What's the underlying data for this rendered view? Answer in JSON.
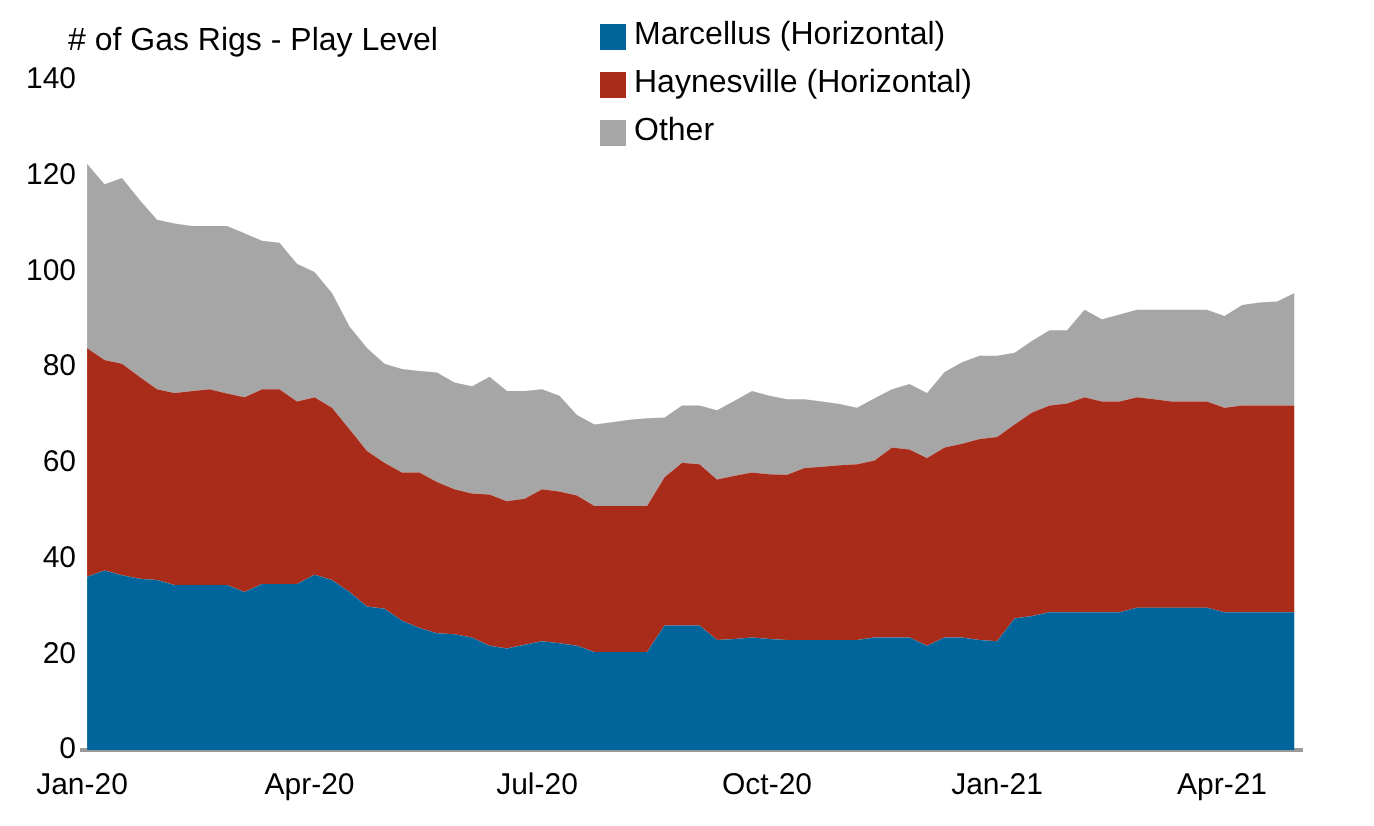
{
  "chart_data": {
    "type": "area",
    "stacked": true,
    "ylabel": "# of Gas Rigs - Play Level",
    "x": [
      "2020-01-03",
      "2020-01-10",
      "2020-01-17",
      "2020-01-24",
      "2020-01-31",
      "2020-02-07",
      "2020-02-14",
      "2020-02-21",
      "2020-02-28",
      "2020-03-06",
      "2020-03-13",
      "2020-03-20",
      "2020-03-27",
      "2020-04-03",
      "2020-04-10",
      "2020-04-17",
      "2020-04-24",
      "2020-05-01",
      "2020-05-08",
      "2020-05-15",
      "2020-05-22",
      "2020-05-29",
      "2020-06-05",
      "2020-06-12",
      "2020-06-19",
      "2020-06-26",
      "2020-07-03",
      "2020-07-10",
      "2020-07-17",
      "2020-07-24",
      "2020-07-31",
      "2020-08-07",
      "2020-08-14",
      "2020-08-21",
      "2020-08-28",
      "2020-09-04",
      "2020-09-11",
      "2020-09-18",
      "2020-09-25",
      "2020-10-02",
      "2020-10-09",
      "2020-10-16",
      "2020-10-23",
      "2020-10-30",
      "2020-11-06",
      "2020-11-13",
      "2020-11-20",
      "2020-11-27",
      "2020-12-04",
      "2020-12-11",
      "2020-12-18",
      "2020-12-25",
      "2021-01-01",
      "2021-01-08",
      "2021-01-15",
      "2021-01-22",
      "2021-01-29",
      "2021-02-05",
      "2021-02-12",
      "2021-02-19",
      "2021-02-26",
      "2021-03-05",
      "2021-03-12",
      "2021-03-19",
      "2021-03-26",
      "2021-04-02",
      "2021-04-09",
      "2021-04-16",
      "2021-04-23",
      "2021-04-30"
    ],
    "series": [
      {
        "name": "Marcellus (Horizontal)",
        "color": "#00659a",
        "values": [
          36.2,
          37.5,
          36.5,
          35.8,
          35.5,
          34.5,
          34.5,
          34.5,
          34.5,
          33,
          34.7,
          34.7,
          34.7,
          36.6,
          35.5,
          33,
          30,
          29.5,
          27,
          25.5,
          24.4,
          24.2,
          23.5,
          21.8,
          21.2,
          22,
          22.7,
          22.3,
          21.8,
          20.5,
          20.5,
          20.5,
          20.5,
          26,
          26,
          26,
          23,
          23.2,
          23.5,
          23.2,
          23,
          23,
          23,
          23,
          23,
          23.5,
          23.5,
          23.5,
          21.8,
          23.5,
          23.5,
          23,
          22.7,
          27.5,
          28,
          28.8,
          28.8,
          28.8,
          28.8,
          28.8,
          29.7,
          29.7,
          29.7,
          29.7,
          29.7,
          28.8,
          28.8,
          28.8,
          28.8,
          28.8
        ]
      },
      {
        "name": "Haynesville (Horizontal)",
        "color": "#a92c1b",
        "values": [
          47.8,
          44,
          44.2,
          42.2,
          39.9,
          40.1,
          40.5,
          40.9,
          40,
          40.7,
          40.7,
          40.7,
          38.1,
          37.1,
          36,
          34,
          32.5,
          30.5,
          31,
          32.5,
          31.6,
          30.3,
          30.1,
          31.6,
          30.8,
          30.5,
          31.8,
          31.7,
          31.4,
          30.5,
          30.5,
          30.5,
          30.5,
          31,
          34,
          33.7,
          33.5,
          34.1,
          34.5,
          34.4,
          34.5,
          35.9,
          36.2,
          36.5,
          36.7,
          37,
          39.7,
          39.3,
          39.2,
          39.7,
          40.5,
          42,
          42.7,
          40.5,
          42.5,
          43.2,
          43.6,
          44.9,
          44,
          44,
          44,
          43.6,
          43.1,
          43.1,
          43.1,
          42.7,
          43.2,
          43.2,
          43.2,
          43.2
        ]
      },
      {
        "name": "Other",
        "color": "#a6a6a6",
        "values": [
          38.5,
          36.7,
          38.8,
          37,
          35.4,
          35.4,
          34.5,
          34.1,
          35,
          34.3,
          31,
          30.6,
          28.8,
          26.2,
          24,
          21.5,
          21.5,
          20.7,
          21.6,
          21.2,
          22.9,
          22.3,
          22.4,
          24.6,
          23,
          22.5,
          20.9,
          20,
          16.8,
          17,
          17.5,
          18,
          18.3,
          12.5,
          12,
          12.3,
          14.5,
          15.7,
          17,
          16.4,
          15.8,
          14.4,
          13.6,
          12.8,
          11.8,
          13,
          12.2,
          13.7,
          13.6,
          15.8,
          17,
          17.4,
          17,
          15,
          15,
          15.7,
          15.3,
          18.3,
          17.2,
          18.2,
          18.3,
          18.7,
          19.2,
          19.2,
          19.2,
          19.2,
          21,
          21.5,
          21.7,
          23.5
        ]
      }
    ],
    "xlim": [
      "2020-01-01",
      "2021-05-03"
    ],
    "xticks": [
      {
        "value": "2020-01-01",
        "label": "Jan-20"
      },
      {
        "value": "2020-04-01",
        "label": "Apr-20"
      },
      {
        "value": "2020-07-01",
        "label": "Jul-20"
      },
      {
        "value": "2020-10-01",
        "label": "Oct-20"
      },
      {
        "value": "2021-01-01",
        "label": "Jan-21"
      },
      {
        "value": "2021-04-01",
        "label": "Apr-21"
      }
    ],
    "ylim": [
      0,
      140
    ],
    "yticks": [
      0,
      20,
      40,
      60,
      80,
      100,
      120,
      140
    ],
    "grid": false,
    "legend": "top"
  }
}
